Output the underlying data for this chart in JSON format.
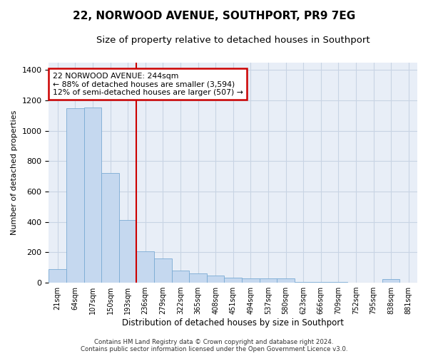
{
  "title": "22, NORWOOD AVENUE, SOUTHPORT, PR9 7EG",
  "subtitle": "Size of property relative to detached houses in Southport",
  "xlabel": "Distribution of detached houses by size in Southport",
  "ylabel": "Number of detached properties",
  "categories": [
    "21sqm",
    "64sqm",
    "107sqm",
    "150sqm",
    "193sqm",
    "236sqm",
    "279sqm",
    "322sqm",
    "365sqm",
    "408sqm",
    "451sqm",
    "494sqm",
    "537sqm",
    "580sqm",
    "623sqm",
    "666sqm",
    "709sqm",
    "752sqm",
    "795sqm",
    "838sqm",
    "881sqm"
  ],
  "values": [
    90,
    1150,
    1155,
    720,
    415,
    205,
    160,
    80,
    60,
    45,
    35,
    30,
    30,
    30,
    5,
    5,
    5,
    0,
    0,
    22,
    0
  ],
  "bar_color": "#c5d8ef",
  "bar_edge_color": "#7aabd4",
  "grid_color": "#c8d4e4",
  "bg_color": "#e8eef7",
  "vline_x": 4.5,
  "vline_color": "#cc0000",
  "annotation_text": "22 NORWOOD AVENUE: 244sqm\n← 88% of detached houses are smaller (3,594)\n12% of semi-detached houses are larger (507) →",
  "annotation_box_color": "#ffffff",
  "annotation_box_edge": "#cc0000",
  "footer_line1": "Contains HM Land Registry data © Crown copyright and database right 2024.",
  "footer_line2": "Contains public sector information licensed under the Open Government Licence v3.0.",
  "ylim": [
    0,
    1450
  ],
  "yticks": [
    0,
    200,
    400,
    600,
    800,
    1000,
    1200,
    1400
  ],
  "title_fontsize": 11,
  "subtitle_fontsize": 9.5
}
